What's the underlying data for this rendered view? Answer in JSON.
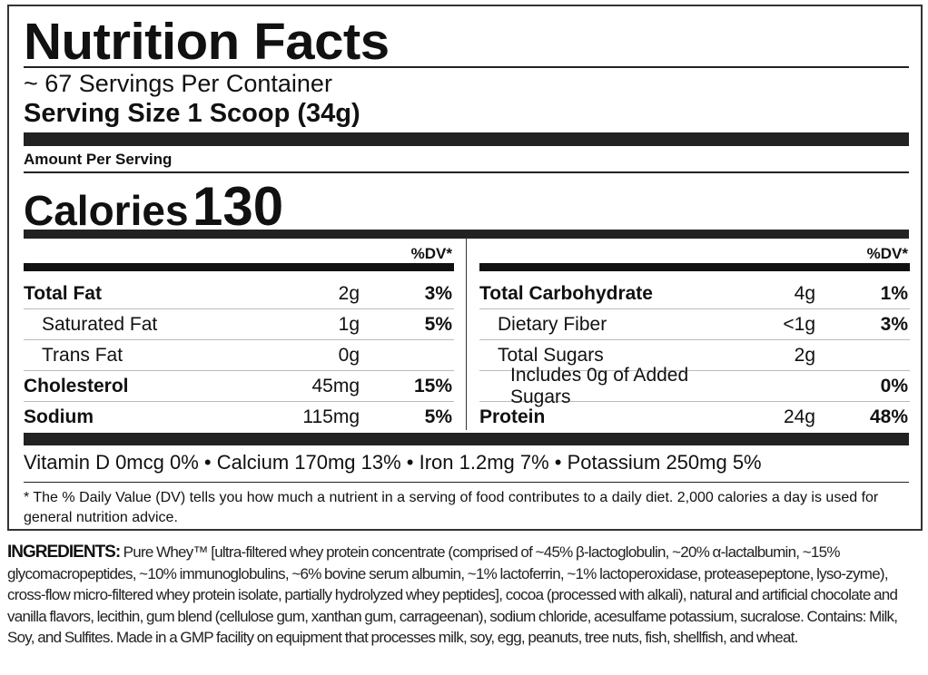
{
  "label": {
    "title": "Nutrition Facts",
    "servings_per_container": "~ 67 Servings Per Container",
    "serving_size": "Serving Size 1 Scoop (34g)",
    "amount_per_serving": "Amount Per Serving",
    "calories_label": "Calories",
    "calories_value": "130",
    "dv_header": "%DV*",
    "left_rows": [
      {
        "name": "Total Fat",
        "amount": "2g",
        "dv": "3%"
      },
      {
        "name": "Saturated Fat",
        "amount": "1g",
        "dv": "5%"
      },
      {
        "name": "Trans Fat",
        "amount": "0g",
        "dv": ""
      },
      {
        "name": "Cholesterol",
        "amount": "45mg",
        "dv": "15%"
      },
      {
        "name": "Sodium",
        "amount": "115mg",
        "dv": "5%"
      }
    ],
    "right_rows": [
      {
        "name": "Total Carbohydrate",
        "amount": "4g",
        "dv": "1%"
      },
      {
        "name": "Dietary Fiber",
        "amount": "<1g",
        "dv": "3%"
      },
      {
        "name": "Total Sugars",
        "amount": "2g",
        "dv": ""
      },
      {
        "name": "Includes 0g of Added Sugars",
        "amount": "",
        "dv": "0%"
      },
      {
        "name": "Protein",
        "amount": "24g",
        "dv": "48%"
      }
    ],
    "vitamins": "Vitamin D 0mcg 0% • Calcium 170mg 13% • Iron 1.2mg 7% • Potassium 250mg 5%",
    "footnote": "* The % Daily Value (DV) tells you how much a nutrient in a serving of food contributes to a daily diet. 2,000 calories a day is used for general nutrition advice."
  },
  "ingredients": {
    "heading": "INGREDIENTS:",
    "text": "Pure Whey™ [ultra-filtered whey protein concentrate (comprised of ~45% β-lactoglobulin, ~20% α-lactalbumin, ~15% glycomacropeptides, ~10% immunoglobulins, ~6% bovine serum albumin, ~1% lactoferrin, ~1% lactoperoxidase, proteasepeptone, lyso-zyme), cross-flow micro-filtered whey protein isolate, partially hydrolyzed whey peptides], cocoa (processed with alkali), natural and artificial chocolate and vanilla flavors, lecithin, gum blend (cellulose gum, xanthan gum, carrageenan), sodium chloride, acesulfame potassium, sucralose. Contains: Milk, Soy, and Sulfites. Made in a GMP facility on equipment that processes milk, soy, egg, peanuts, tree nuts, fish, shellfish, and wheat."
  }
}
